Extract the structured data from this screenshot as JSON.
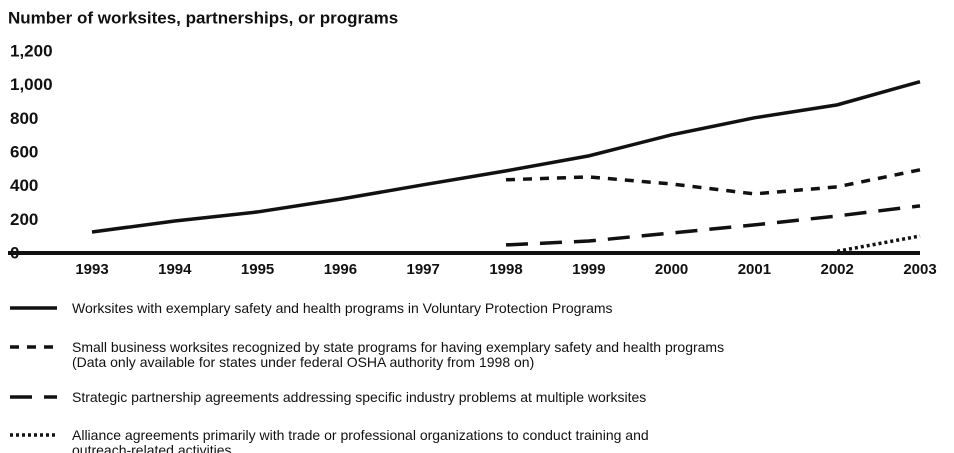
{
  "chart_data": {
    "type": "line",
    "title": "Number of worksites, partnerships, or programs",
    "categories": [
      "1993",
      "1994",
      "1995",
      "1996",
      "1997",
      "1998",
      "1999",
      "2000",
      "2001",
      "2002",
      "2003"
    ],
    "ylim": [
      0,
      1200
    ],
    "yticks": [
      0,
      200,
      400,
      600,
      800,
      {
        "value": 1000,
        "label": "1,000"
      },
      {
        "value": 1200,
        "label": "1,200"
      }
    ],
    "grid": false,
    "series": [
      {
        "name": "Worksites with exemplary safety and health programs in Voluntary Protection Programs",
        "color": "#111111",
        "dash": "solid",
        "values": [
          125,
          190,
          244,
          320,
          405,
          488,
          577,
          702,
          803,
          880,
          1018
        ]
      },
      {
        "name": "Small business worksites recognized by state programs for having exemplary safety and health programs\n(Data only available for states under federal OSHA authority from 1998 on)",
        "color": "#111111",
        "dash": "dashed",
        "values": [
          null,
          null,
          null,
          null,
          null,
          435,
          452,
          410,
          351,
          393,
          494
        ]
      },
      {
        "name": "Strategic partnership agreements addressing specific industry problems at multiple worksites",
        "color": "#111111",
        "dash": "longdash",
        "values": [
          null,
          null,
          null,
          null,
          null,
          48,
          71,
          119,
          167,
          220,
          280
        ]
      },
      {
        "name": "Alliance agreements primarily with trade or professional organizations to conduct training and\noutreach-related activities",
        "color": "#111111",
        "dash": "dotted",
        "values": [
          null,
          null,
          null,
          null,
          null,
          null,
          null,
          null,
          null,
          10,
          101
        ]
      }
    ]
  }
}
